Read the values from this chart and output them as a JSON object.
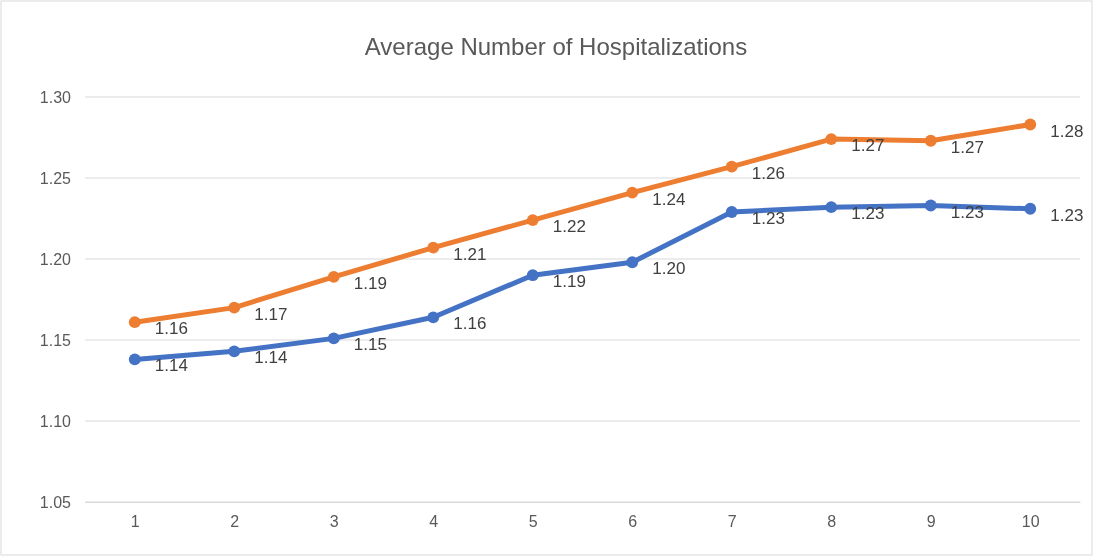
{
  "chart_data": {
    "type": "line",
    "title": "Average Number of Hospitalizations",
    "categories": [
      "1",
      "2",
      "3",
      "4",
      "5",
      "6",
      "7",
      "8",
      "9",
      "10"
    ],
    "series": [
      {
        "color": "#ed7d31",
        "values": [
          1.161,
          1.17,
          1.189,
          1.207,
          1.224,
          1.241,
          1.257,
          1.274,
          1.273,
          1.283
        ],
        "value_labels": [
          "1.16",
          "1.17",
          "1.19",
          "1.21",
          "1.22",
          "1.24",
          "1.26",
          "1.27",
          "1.27",
          "1.28"
        ]
      },
      {
        "color": "#4472c4",
        "values": [
          1.138,
          1.143,
          1.151,
          1.164,
          1.19,
          1.198,
          1.229,
          1.232,
          1.233,
          1.231
        ],
        "value_labels": [
          "1.14",
          "1.14",
          "1.15",
          "1.16",
          "1.19",
          "1.20",
          "1.23",
          "1.23",
          "1.23",
          "1.23"
        ]
      }
    ],
    "ylim": [
      1.05,
      1.3
    ],
    "yticks": [
      {
        "value": 1.05,
        "label": "1.05"
      },
      {
        "value": 1.1,
        "label": "1.10"
      },
      {
        "value": 1.15,
        "label": "1.15"
      },
      {
        "value": 1.2,
        "label": "1.20"
      },
      {
        "value": 1.25,
        "label": "1.25"
      },
      {
        "value": 1.3,
        "label": "1.30"
      }
    ],
    "grid": "y",
    "marker": "circle",
    "line_style": "solid"
  }
}
